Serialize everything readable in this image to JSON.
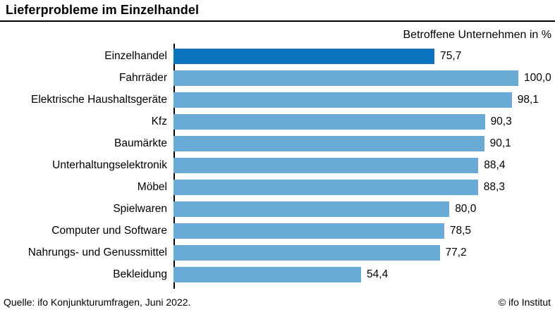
{
  "header": {
    "title": "Lieferprobleme im Einzelhandel",
    "subtitle": "Betroffene Unternehmen in %"
  },
  "footer": {
    "source": "Quelle: ifo Konjunkturumfragen, Juni 2022.",
    "copyright": "© ifo Institut"
  },
  "colors": {
    "highlight_bar": "#0b74bc",
    "bar": "#69aad5",
    "axis": "#000000",
    "title_rule": "#000000"
  },
  "chart_data": {
    "type": "bar",
    "orientation": "horizontal",
    "title": "Lieferprobleme im Einzelhandel",
    "subtitle": "Betroffene Unternehmen in %",
    "categories": [
      "Einzelhandel",
      "Fahrräder",
      "Elektrische Haushaltsgeräte",
      "Kfz",
      "Baumärkte",
      "Unterhaltungselektronik",
      "Möbel",
      "Spielwaren",
      "Computer und Software",
      "Nahrungs- und Genussmittel",
      "Bekleidung"
    ],
    "values": [
      75.7,
      100.0,
      98.1,
      90.3,
      90.1,
      88.4,
      88.3,
      80.0,
      78.5,
      77.2,
      54.4
    ],
    "value_labels": [
      "75,7",
      "100,0",
      "98,1",
      "90,3",
      "90,1",
      "88,4",
      "88,3",
      "80,0",
      "78,5",
      "77,2",
      "54,4"
    ],
    "highlighted_index": 0,
    "xlim": [
      0,
      100
    ],
    "grid": false,
    "legend": false
  }
}
